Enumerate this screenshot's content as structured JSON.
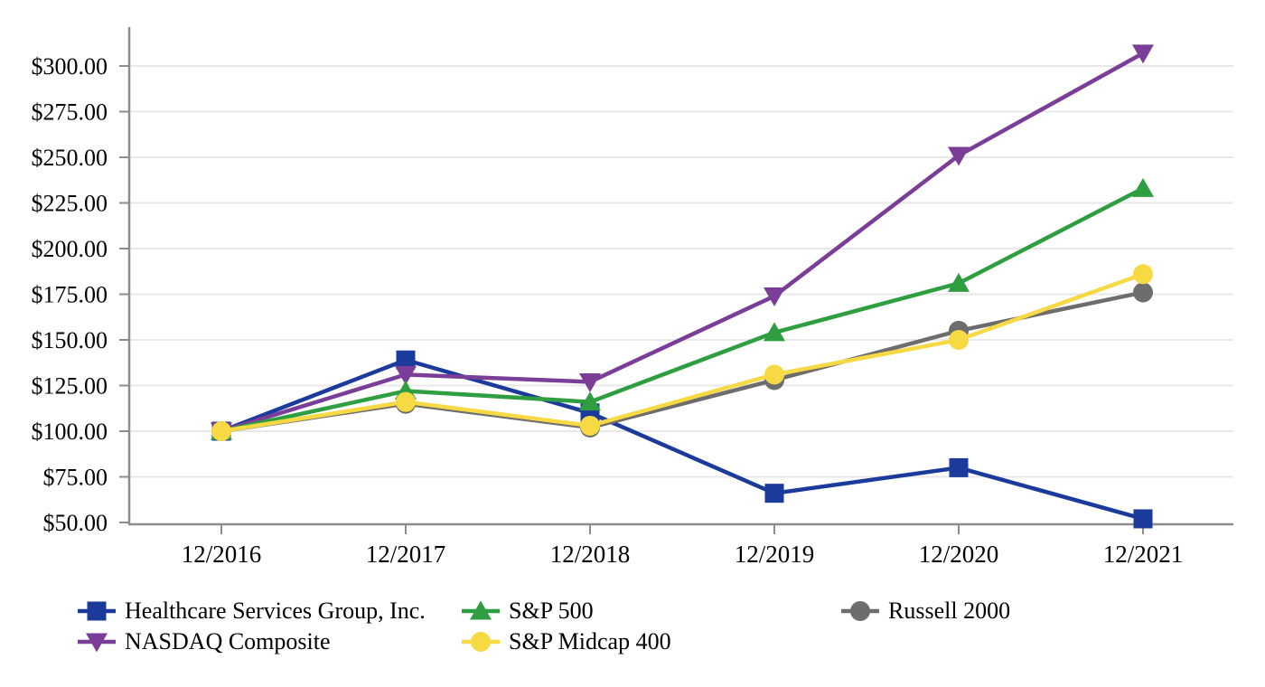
{
  "chart_data": {
    "type": "line",
    "x_categories": [
      "12/2016",
      "12/2017",
      "12/2018",
      "12/2019",
      "12/2020",
      "12/2021"
    ],
    "y_axis": {
      "min": 50,
      "max": 300,
      "step": 25,
      "tick_labels": [
        "$50.00",
        "$75.00",
        "$100.00",
        "$125.00",
        "$150.00",
        "$175.00",
        "$200.00",
        "$225.00",
        "$250.00",
        "$275.00",
        "$300.00"
      ]
    },
    "grid": "horizontal",
    "legend_position": "bottom",
    "colors": {
      "axis": "#8c8c8c",
      "gridline": "#e8e8e8",
      "text": "#000000"
    },
    "series": [
      {
        "name": "Healthcare Services Group, Inc.",
        "color": "#1a3a9c",
        "marker": "square",
        "values": [
          100,
          139,
          110,
          66,
          80,
          52
        ]
      },
      {
        "name": "NASDAQ Composite",
        "color": "#7b3e98",
        "marker": "triangle-down",
        "values": [
          100,
          131,
          127,
          174,
          251,
          307
        ]
      },
      {
        "name": "S&P 500",
        "color": "#2f9e41",
        "marker": "triangle-up",
        "values": [
          100,
          122,
          116,
          154,
          181,
          233
        ]
      },
      {
        "name": "Russell 2000",
        "color": "#6d6d6d",
        "marker": "circle",
        "values": [
          100,
          115,
          102,
          128,
          155,
          176
        ]
      },
      {
        "name": "S&P Midcap 400",
        "color": "#f7d944",
        "marker": "circle",
        "values": [
          100,
          116,
          103,
          131,
          150,
          186
        ]
      }
    ]
  }
}
